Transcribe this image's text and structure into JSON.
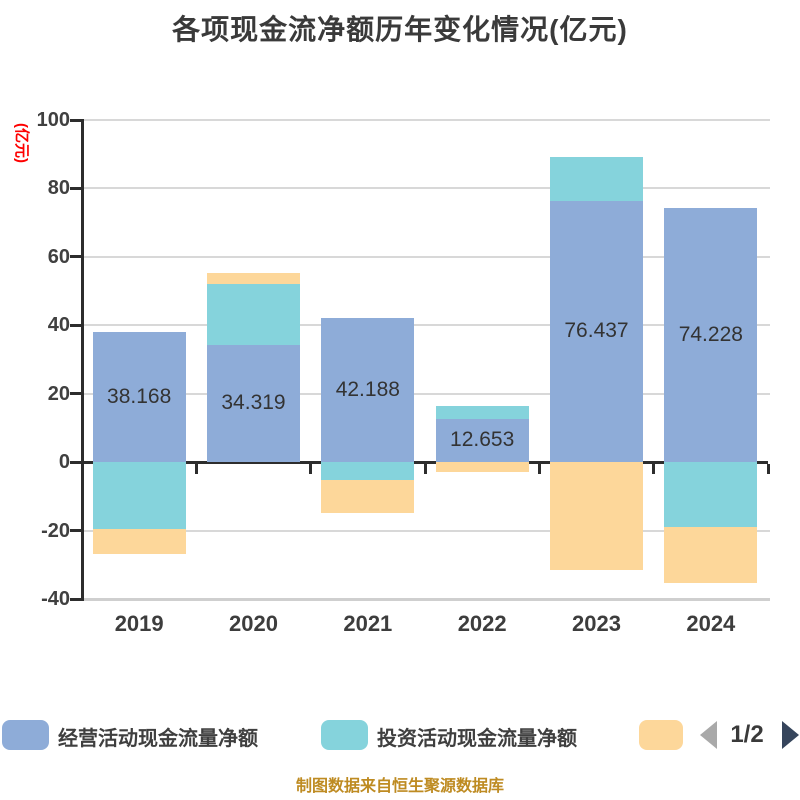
{
  "title": "各项现金流净额历年变化情况(亿元)",
  "y_axis_unit": "(亿元)",
  "colors": {
    "operating": "#8eacd8",
    "investing": "#85d3dc",
    "financing": "#fdd79a",
    "unit_label": "#fe0000",
    "caption": "#be8b22",
    "arrow_left": "#a9a9a9",
    "arrow_right": "#36455c"
  },
  "legend": {
    "items": [
      {
        "label": "经营活动现金流量净额",
        "color": "#8eacd8"
      },
      {
        "label": "投资活动现金流量净额",
        "color": "#85d3dc"
      },
      {
        "label": "",
        "color": "#fdd79a"
      }
    ],
    "pagination": {
      "page": "1/2"
    }
  },
  "caption": "制图数据来自恒生聚源数据库",
  "chart_data": {
    "type": "bar",
    "stacked": true,
    "title": "各项现金流净额历年变化情况(亿元)",
    "xlabel": "",
    "ylabel": "(亿元)",
    "ylim": [
      -40,
      100
    ],
    "yticks": [
      100,
      80,
      60,
      40,
      20,
      0,
      -20,
      -40
    ],
    "grid": true,
    "legend_position": "bottom",
    "categories": [
      "2019",
      "2020",
      "2021",
      "2022",
      "2023",
      "2024"
    ],
    "series": [
      {
        "name": "经营活动现金流量净额",
        "color": "#8eacd8",
        "values": [
          38.168,
          34.319,
          42.188,
          12.653,
          76.437,
          74.228
        ],
        "labels": [
          "38.168",
          "34.319",
          "42.188",
          "12.653",
          "76.437",
          "74.228"
        ]
      },
      {
        "name": "投资活动现金流量净额",
        "color": "#85d3dc",
        "estimated": true,
        "values": [
          -19.4,
          17.8,
          -5.3,
          3.9,
          12.7,
          -19.0
        ]
      },
      {
        "name": "",
        "color": "#fdd79a",
        "estimated": true,
        "values": [
          -7.5,
          3.3,
          -9.7,
          -2.9,
          -31.6,
          -16.4
        ]
      }
    ]
  }
}
